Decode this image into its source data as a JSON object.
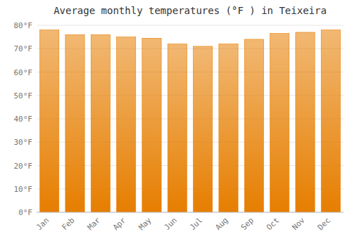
{
  "chart_data": {
    "type": "bar",
    "title": "Average monthly temperatures (°F ) in Teixeira",
    "categories": [
      "Jan",
      "Feb",
      "Mar",
      "Apr",
      "May",
      "Jun",
      "Jul",
      "Aug",
      "Sep",
      "Oct",
      "Nov",
      "Dec"
    ],
    "values": [
      78,
      76,
      76,
      75,
      74.5,
      72,
      71,
      72,
      74,
      76.5,
      77,
      78
    ],
    "color": "#E67E00",
    "ylim": [
      0,
      80
    ],
    "yticks": [
      {
        "value": 0,
        "label": "0°F"
      },
      {
        "value": 10,
        "label": "10°F"
      },
      {
        "value": 20,
        "label": "20°F"
      },
      {
        "value": 30,
        "label": "30°F"
      },
      {
        "value": 40,
        "label": "40°F"
      },
      {
        "value": 50,
        "label": "50°F"
      },
      {
        "value": 60,
        "label": "60°F"
      },
      {
        "value": 70,
        "label": "70°F"
      },
      {
        "value": 80,
        "label": "80°F"
      }
    ],
    "grid": true
  }
}
